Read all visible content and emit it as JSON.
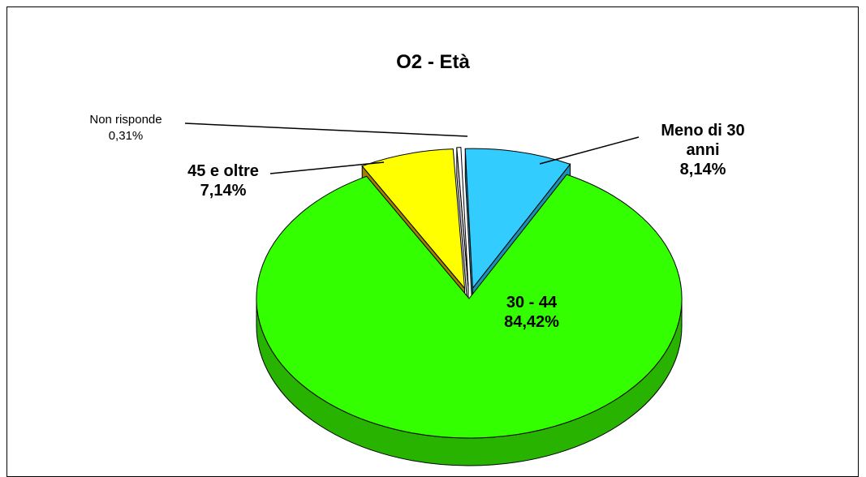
{
  "chart_data": {
    "type": "pie",
    "title": "O2 - Età",
    "categories": [
      "Meno di 30 anni",
      "30 - 44",
      "45 e oltre",
      "Non risponde"
    ],
    "values": [
      8.14,
      84.42,
      7.14,
      0.31
    ],
    "value_labels": [
      "8,14%",
      "84,42%",
      "7,14%",
      "0,31%"
    ],
    "label_lines": [
      [
        "Meno di 30",
        "anni",
        "8,14%"
      ],
      [
        "30 - 44",
        "84,42%"
      ],
      [
        "45 e oltre",
        "7,14%"
      ],
      [
        "Non risponde",
        "0,31%"
      ]
    ],
    "colors": [
      "#33CCFF",
      "#33FF00",
      "#FFFF00",
      "#FFFFFF"
    ],
    "side_colors": [
      "#1C8FB4",
      "#27B300",
      "#A08000",
      "#C8C8C8"
    ],
    "style": "3d-exploded",
    "legend": "none"
  }
}
